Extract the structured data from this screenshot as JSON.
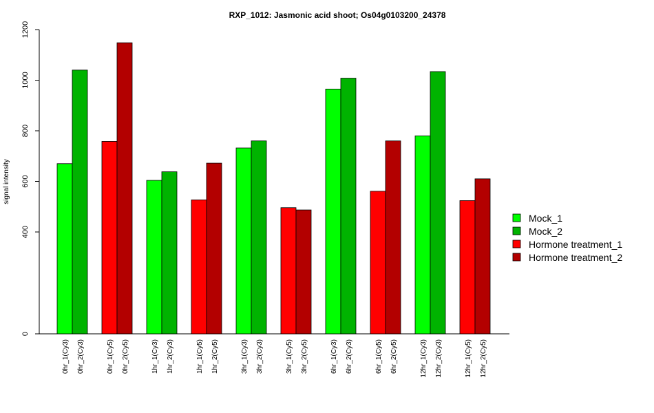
{
  "chart_data": {
    "type": "bar",
    "title": "RXP_1012: Jasmonic acid shoot; Os04g0103200_24378",
    "xlabel": "",
    "ylabel": "signal intensity",
    "ylim": [
      0,
      1200
    ],
    "yticks": [
      0,
      400,
      600,
      800,
      1000,
      1200
    ],
    "grid": false,
    "legend_position": "right",
    "categories": [
      "0hr_1(Cy3)",
      "0hr_2(Cy3)",
      "0hr_1(Cy5)",
      "0hr_2(Cy5)",
      "1hr_1(Cy3)",
      "1hr_2(Cy3)",
      "1hr_1(Cy5)",
      "1hr_2(Cy5)",
      "3hr_1(Cy3)",
      "3hr_2(Cy3)",
      "3hr_1(Cy5)",
      "3hr_2(Cy5)",
      "6hr_1(Cy3)",
      "6hr_2(Cy3)",
      "6hr_1(Cy5)",
      "6hr_2(Cy5)",
      "12hr_1(Cy3)",
      "12hr_2(Cy3)",
      "12hr_1(Cy5)",
      "12hr_2(Cy5)"
    ],
    "values": [
      670,
      1040,
      758,
      1148,
      604,
      638,
      527,
      672,
      732,
      760,
      496,
      487,
      965,
      1008,
      561,
      760,
      780,
      1034,
      524,
      610
    ],
    "bar_series": [
      0,
      1,
      2,
      3,
      0,
      1,
      2,
      3,
      0,
      1,
      2,
      3,
      0,
      1,
      2,
      3,
      0,
      1,
      2,
      3
    ],
    "series": [
      {
        "name": "Mock_1",
        "color": "#00ff00"
      },
      {
        "name": "Mock_2",
        "color": "#00b300"
      },
      {
        "name": "Hormone treatment_1",
        "color": "#ff0000"
      },
      {
        "name": "Hormone treatment_2",
        "color": "#b30000"
      }
    ]
  }
}
